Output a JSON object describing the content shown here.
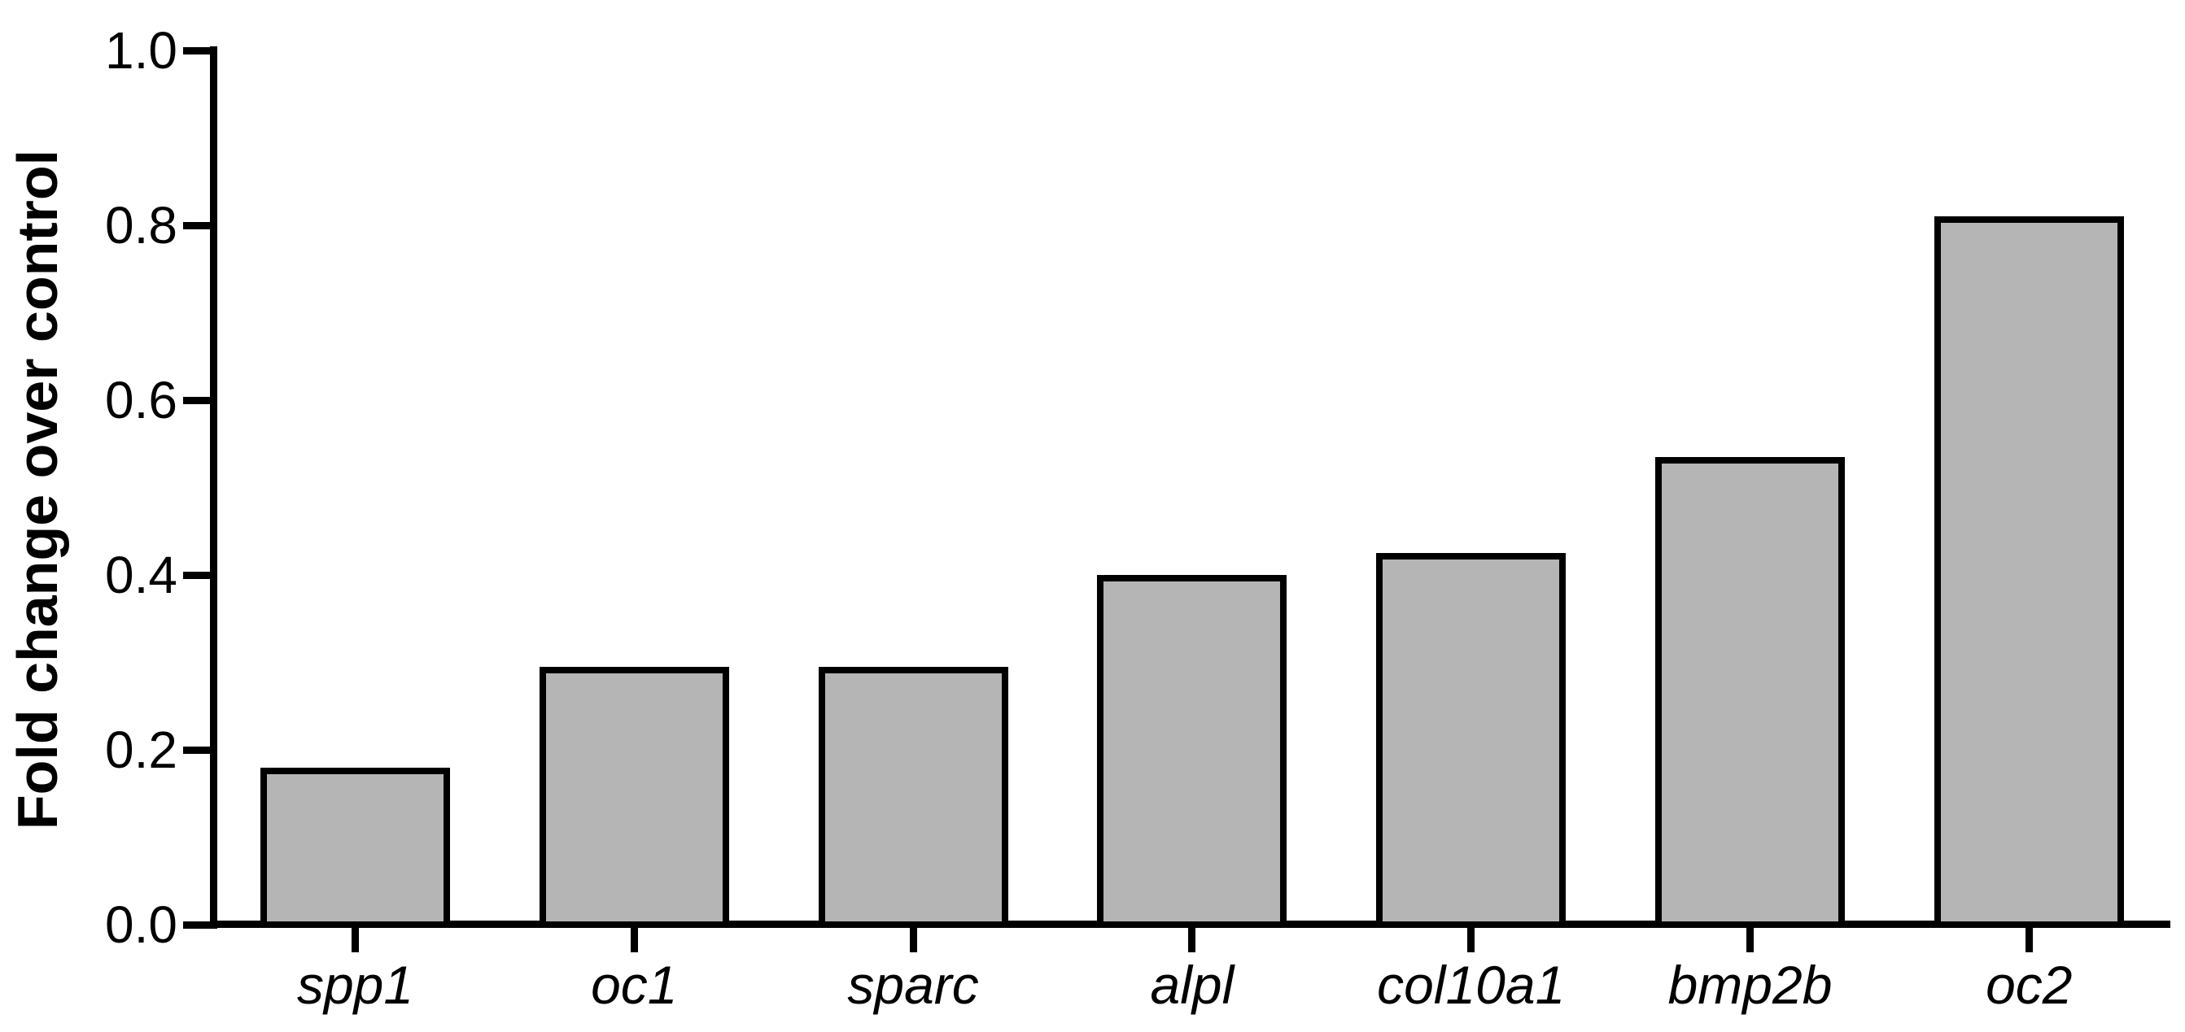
{
  "figure": {
    "background_color": "#ffffff"
  },
  "chart_data": {
    "type": "bar",
    "categories": [
      "spp1",
      "oc1",
      "sparc",
      "alpl",
      "col10a1",
      "bmp2b",
      "oc2"
    ],
    "values": [
      0.18,
      0.295,
      0.295,
      0.4,
      0.425,
      0.535,
      0.81
    ],
    "title": "",
    "xlabel": "",
    "ylabel": "Fold change over control",
    "ylim": [
      0,
      1.0
    ],
    "yticks": [
      0,
      0.2,
      0.4,
      0.6,
      0.8,
      1.0
    ],
    "ytick_labels": [
      "0.0",
      "0.2",
      "0.4",
      "0.6",
      "0.8",
      "1.0"
    ],
    "grid": false,
    "legend": false,
    "bar_fill_color": "#b5b5b5",
    "bar_border_color": "#000000",
    "axis_color": "#000000"
  }
}
